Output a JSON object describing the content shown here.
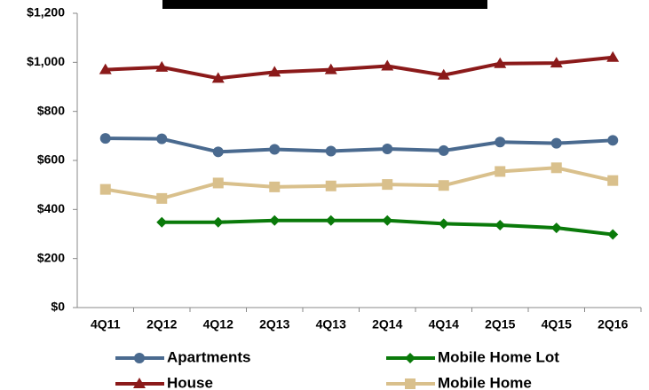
{
  "chart_data": {
    "type": "line",
    "categories": [
      "4Q11",
      "2Q12",
      "4Q12",
      "2Q13",
      "4Q13",
      "2Q14",
      "4Q14",
      "2Q15",
      "4Q15",
      "2Q16"
    ],
    "series": [
      {
        "name": "Apartments",
        "color": "#4a6a8f",
        "marker": "circle",
        "values": [
          690,
          688,
          635,
          645,
          638,
          647,
          640,
          675,
          670,
          682
        ]
      },
      {
        "name": "Mobile Home Lot",
        "color": "#0a7a0a",
        "marker": "diamond",
        "values": [
          null,
          348,
          348,
          355,
          355,
          355,
          342,
          336,
          325,
          298
        ]
      },
      {
        "name": "House",
        "color": "#8b1a1a",
        "marker": "triangle",
        "values": [
          970,
          980,
          935,
          960,
          970,
          985,
          948,
          995,
          997,
          1020
        ]
      },
      {
        "name": "Mobile Home",
        "color": "#d9c08c",
        "marker": "square",
        "values": [
          482,
          445,
          508,
          492,
          496,
          502,
          498,
          555,
          570,
          518
        ]
      }
    ],
    "ylim": [
      0,
      1200
    ],
    "yticks": [
      {
        "value": 0,
        "label": "$0"
      },
      {
        "value": 200,
        "label": "$200"
      },
      {
        "value": 400,
        "label": "$400"
      },
      {
        "value": 600,
        "label": "$600"
      },
      {
        "value": 800,
        "label": "$800"
      },
      {
        "value": 1000,
        "label": "$1,000"
      },
      {
        "value": 1200,
        "label": "$1,200"
      }
    ],
    "grid": false
  }
}
